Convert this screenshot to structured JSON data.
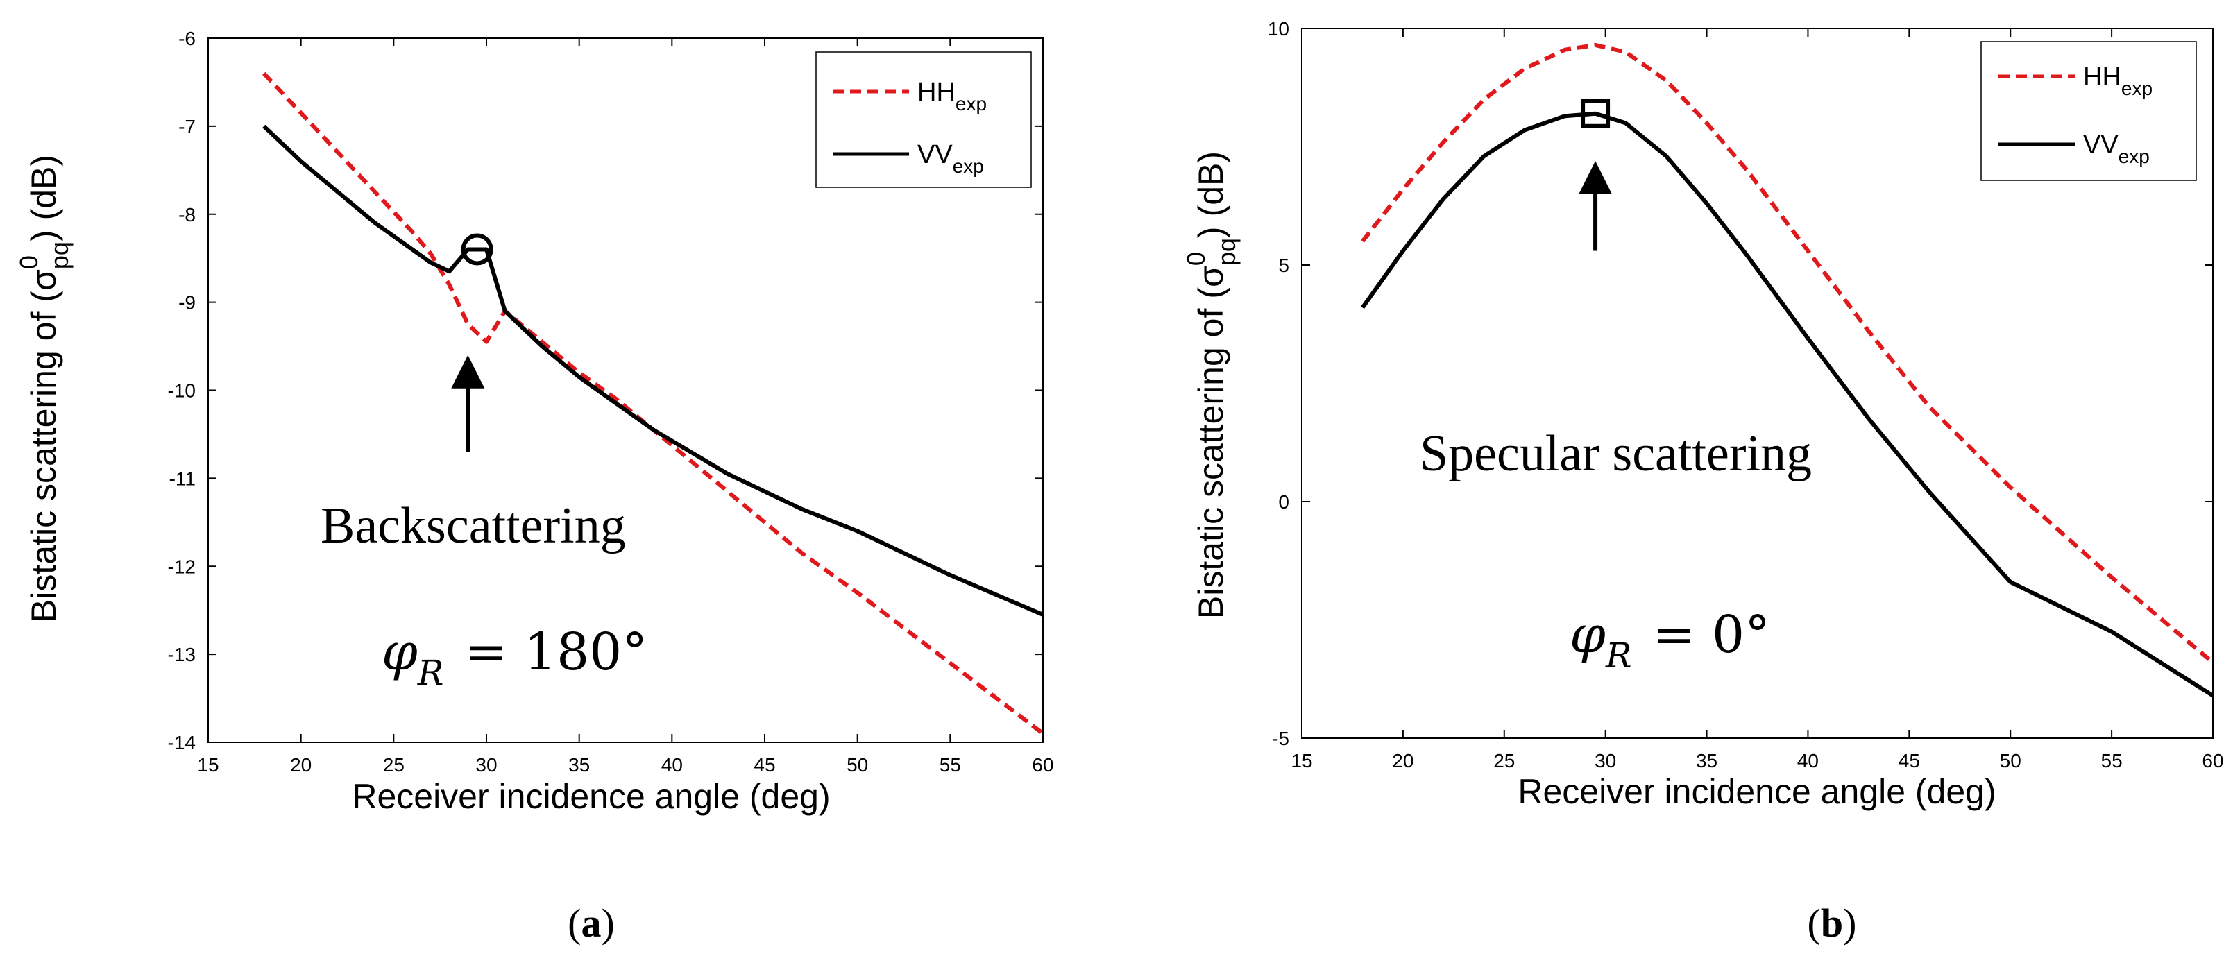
{
  "chart_data": [
    {
      "type": "line",
      "panel_label": "a",
      "xlabel": "Receiver incidence angle (deg)",
      "ylabel": "Bistatic scattering of",
      "ylabel_symbol": "σ",
      "ylabel_sup": "0",
      "ylabel_sub": "pq",
      "ylabel_unit": "(dB)",
      "xlim": [
        15,
        60
      ],
      "ylim": [
        -14,
        -6
      ],
      "xticks": [
        "15",
        "20",
        "25",
        "30",
        "35",
        "40",
        "45",
        "50",
        "55",
        "60"
      ],
      "yticks": [
        "-14",
        "-13",
        "-12",
        "-11",
        "-10",
        "-9",
        "-8",
        "-7",
        "-6"
      ],
      "legend": [
        {
          "base": "HH",
          "sub": "exp",
          "color": "#e0191d",
          "style": "dashed"
        },
        {
          "base": "VV",
          "sub": "exp",
          "color": "#000000",
          "style": "solid"
        }
      ],
      "series": [
        {
          "name": "HH_exp",
          "x": [
            18,
            20,
            22,
            24,
            26,
            27,
            28,
            29,
            30,
            31,
            33,
            35,
            37,
            39,
            41,
            43,
            45,
            47,
            50,
            55,
            60
          ],
          "y": [
            -6.4,
            -6.85,
            -7.3,
            -7.75,
            -8.2,
            -8.45,
            -8.8,
            -9.25,
            -9.45,
            -9.1,
            -9.45,
            -9.8,
            -10.1,
            -10.45,
            -10.8,
            -11.15,
            -11.5,
            -11.85,
            -12.3,
            -13.1,
            -13.9
          ]
        },
        {
          "name": "VV_exp",
          "x": [
            18,
            20,
            22,
            24,
            26,
            27,
            28,
            29,
            30,
            31,
            33,
            35,
            37,
            39,
            41,
            43,
            45,
            47,
            50,
            55,
            60
          ],
          "y": [
            -7.0,
            -7.4,
            -7.75,
            -8.1,
            -8.4,
            -8.55,
            -8.65,
            -8.4,
            -8.4,
            -9.1,
            -9.5,
            -9.85,
            -10.15,
            -10.45,
            -10.7,
            -10.95,
            -11.15,
            -11.35,
            -11.6,
            -12.1,
            -12.55
          ]
        }
      ],
      "marker": {
        "shape": "circle",
        "x": 29.5,
        "y": -8.4
      },
      "arrow": {
        "x": 29,
        "from_y": -10.7,
        "to_y": -9.6
      },
      "annotations": [
        "Backscattering"
      ],
      "math_phi": "φ",
      "math_sub": "R",
      "math_value": "= 180°"
    },
    {
      "type": "line",
      "panel_label": "b",
      "xlabel": "Receiver incidence angle (deg)",
      "ylabel": "Bistatic scattering of",
      "ylabel_symbol": "σ",
      "ylabel_sup": "0",
      "ylabel_sub": "pq",
      "ylabel_unit": "(dB)",
      "xlim": [
        15,
        60
      ],
      "ylim": [
        -5,
        10
      ],
      "xticks": [
        "15",
        "20",
        "25",
        "30",
        "35",
        "40",
        "45",
        "50",
        "55",
        "60"
      ],
      "yticks": [
        "-5",
        "0",
        "5",
        "10"
      ],
      "legend": [
        {
          "base": "HH",
          "sub": "exp",
          "color": "#e0191d",
          "style": "dashed"
        },
        {
          "base": "VV",
          "sub": "exp",
          "color": "#000000",
          "style": "solid"
        }
      ],
      "series": [
        {
          "name": "HH_exp",
          "x": [
            18,
            20,
            22,
            24,
            26,
            28,
            29.5,
            31,
            33,
            35,
            37,
            40,
            43,
            46,
            50,
            55,
            60
          ],
          "y": [
            5.5,
            6.6,
            7.6,
            8.5,
            9.15,
            9.55,
            9.65,
            9.5,
            8.9,
            8.0,
            7.0,
            5.3,
            3.6,
            2.0,
            0.3,
            -1.6,
            -3.4
          ]
        },
        {
          "name": "VV_exp",
          "x": [
            18,
            20,
            22,
            24,
            26,
            28,
            29.5,
            31,
            33,
            35,
            37,
            40,
            43,
            46,
            50,
            55,
            60
          ],
          "y": [
            4.1,
            5.3,
            6.4,
            7.3,
            7.85,
            8.15,
            8.2,
            8.0,
            7.3,
            6.3,
            5.2,
            3.45,
            1.75,
            0.2,
            -1.7,
            -2.75,
            -4.1
          ]
        }
      ],
      "marker": {
        "shape": "square",
        "x": 29.5,
        "y": 8.2
      },
      "arrow": {
        "x": 29.5,
        "from_y": 5.3,
        "to_y": 7.2
      },
      "annotations": [
        "Specular scattering"
      ],
      "math_phi": "φ",
      "math_sub": "R",
      "math_value": "= 0°"
    }
  ]
}
